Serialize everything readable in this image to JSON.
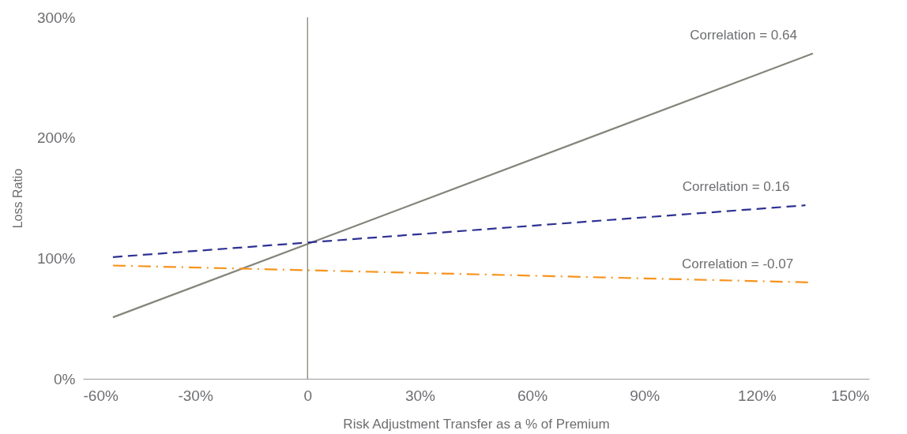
{
  "chart_data": {
    "type": "line",
    "xlabel": "Risk Adjustment Transfer as a % of Premium",
    "ylabel": "Loss Ratio",
    "xlim": [
      -60,
      150
    ],
    "xticks": [
      {
        "value": -60,
        "label": "-60%"
      },
      {
        "value": -30,
        "label": "-30%"
      },
      0,
      {
        "value": 30,
        "label": "30%"
      },
      {
        "value": 60,
        "label": "60%"
      },
      {
        "value": 90,
        "label": "90%"
      },
      {
        "value": 120,
        "label": "120%"
      },
      {
        "value": 150,
        "label": "150%"
      }
    ],
    "ylim": [
      0,
      300
    ],
    "yticks": [
      {
        "value": 0,
        "label": "0%"
      },
      {
        "value": 100,
        "label": "100%"
      },
      {
        "value": 200,
        "label": "200%"
      },
      {
        "value": 300,
        "label": "300%"
      }
    ],
    "grid": false,
    "marker": "none",
    "ref_lines": [
      {
        "axis": "x",
        "value": 0,
        "label": null,
        "color": "#7a7a72"
      }
    ],
    "series": [
      {
        "name": "Correlation = 0.64",
        "color": "#85857c",
        "line_style": "solid",
        "x": [
          -52,
          135
        ],
        "values": [
          51,
          270
        ]
      },
      {
        "name": "Correlation = 0.16",
        "color": "#2e3192",
        "line_style": "dashed",
        "x": [
          -52,
          133
        ],
        "values": [
          101,
          144
        ]
      },
      {
        "name": "Correlation = -0.07",
        "color": "#f7941d",
        "line_style": "dotted",
        "x": [
          -52,
          134
        ],
        "values": [
          94,
          80
        ]
      }
    ]
  }
}
